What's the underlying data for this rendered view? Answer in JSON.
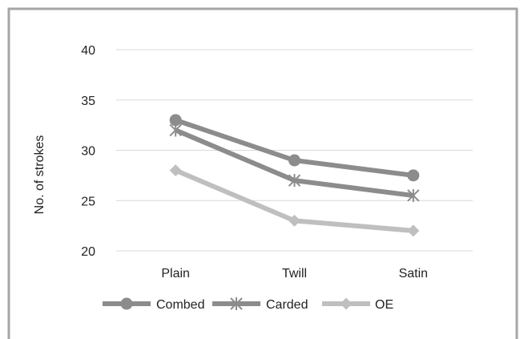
{
  "chart_data": {
    "type": "line",
    "categories": [
      "Plain",
      "Twill",
      "Satin"
    ],
    "series": [
      {
        "name": "Combed",
        "values": [
          33,
          29,
          27.5
        ],
        "color": "#8c8c8c",
        "marker": "circle"
      },
      {
        "name": "Carded",
        "values": [
          32,
          27,
          25.5
        ],
        "color": "#8c8c8c",
        "marker": "asterisk"
      },
      {
        "name": "OE",
        "values": [
          28,
          23,
          22
        ],
        "color": "#bfbfbf",
        "marker": "diamond"
      }
    ],
    "ylabel": "No. of strokes",
    "ylim": [
      20,
      40
    ],
    "yticks": [
      20,
      25,
      30,
      35,
      40
    ],
    "grid": true,
    "legend": "bottom"
  }
}
